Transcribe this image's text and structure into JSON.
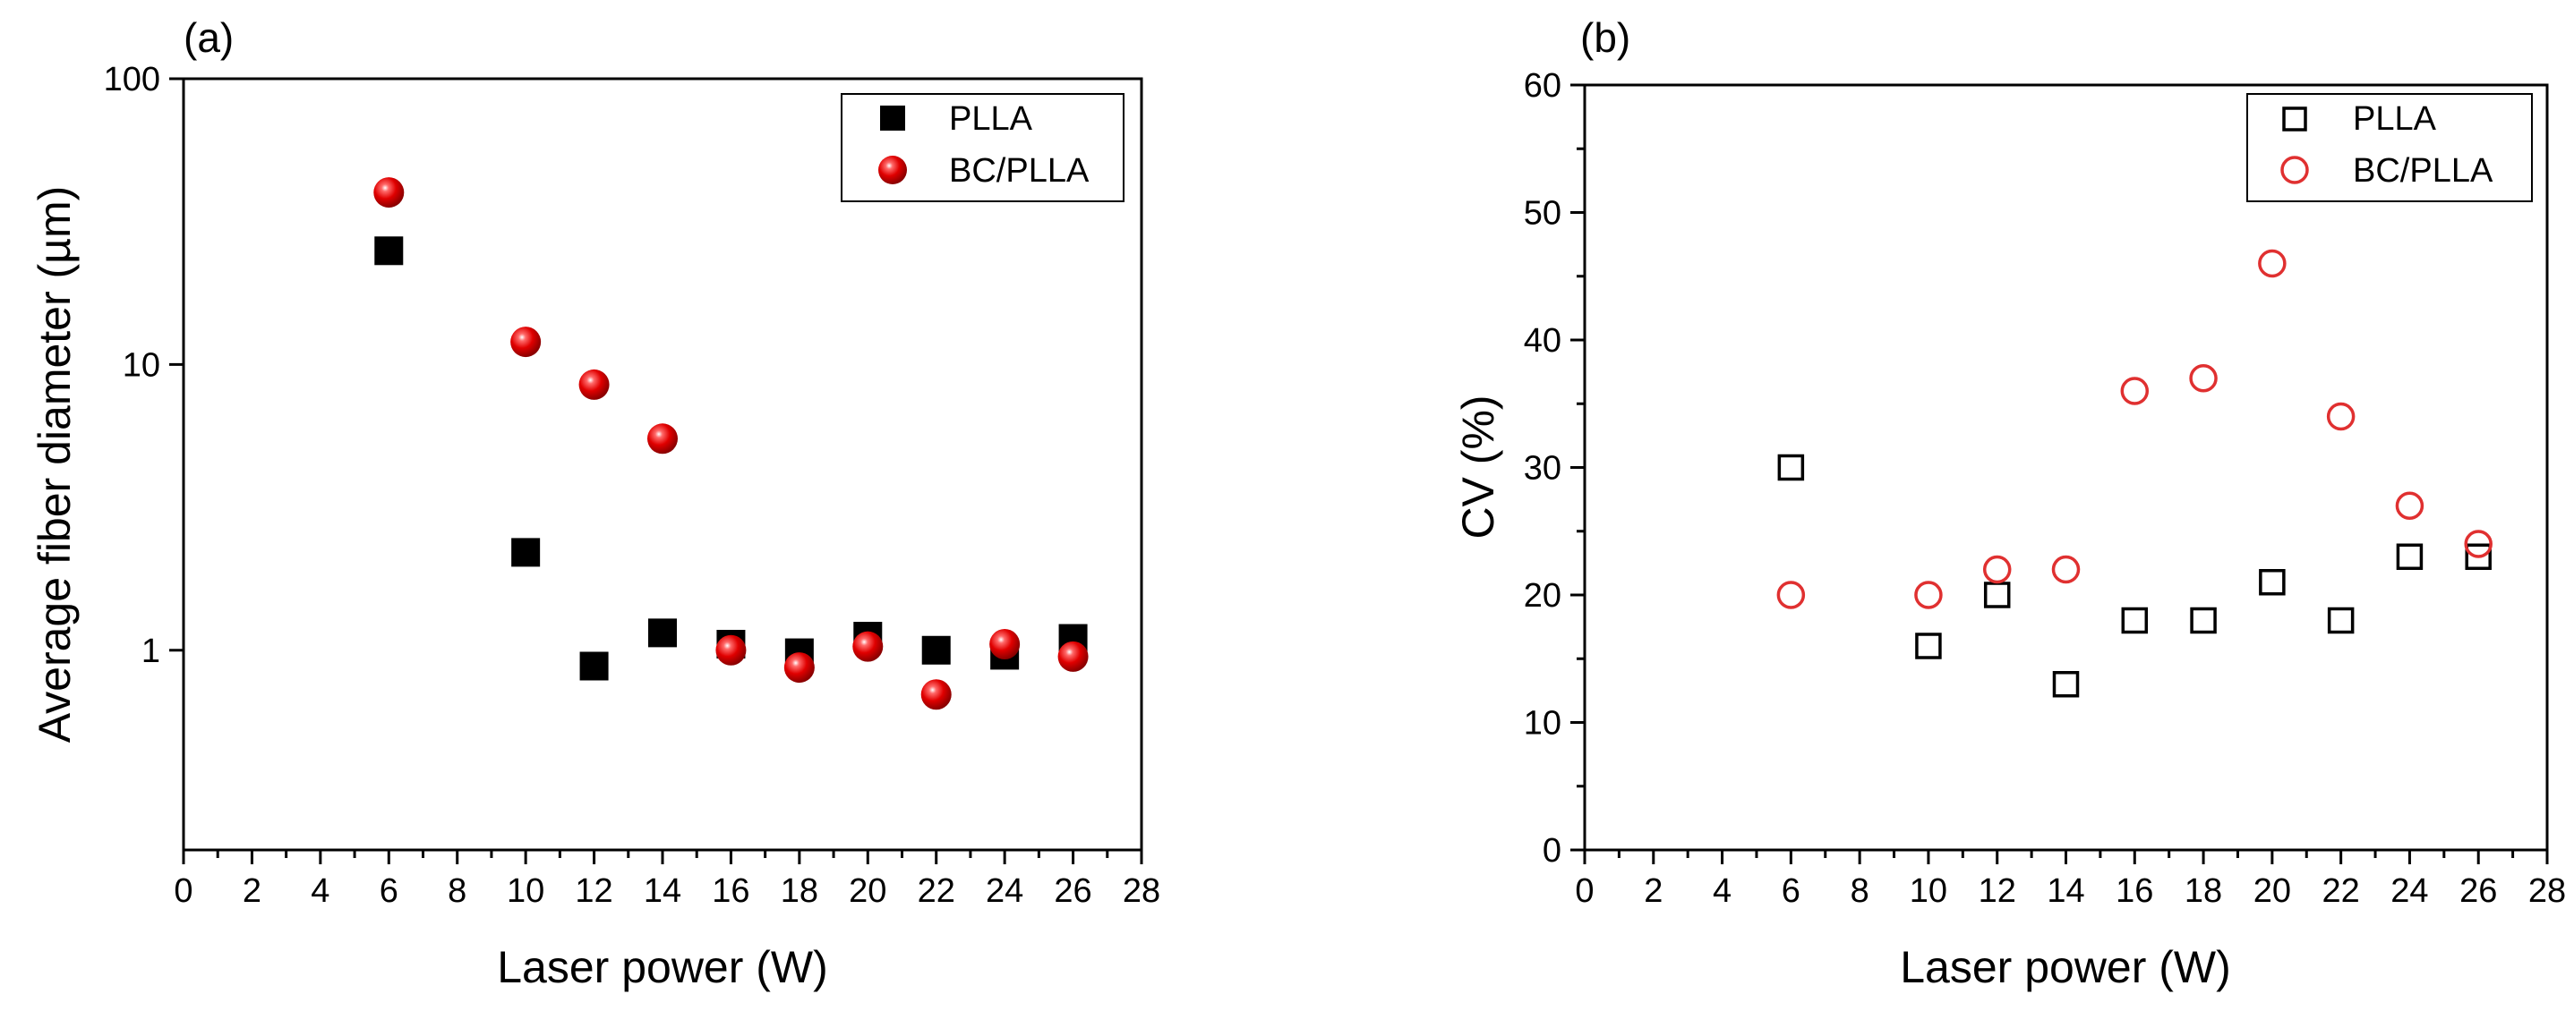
{
  "chart_data": [
    {
      "panel_label": "(a)",
      "type": "scatter",
      "xscale": "linear",
      "yscale": "log",
      "xlabel": "Laser power (W)",
      "ylabel": "Average fiber diameter (µm)",
      "xlim": [
        0,
        28
      ],
      "ylim": [
        0.2,
        100
      ],
      "xticks": [
        "0",
        "2",
        "4",
        "6",
        "8",
        "10",
        "12",
        "14",
        "16",
        "18",
        "20",
        "22",
        "24",
        "26",
        "28"
      ],
      "yticks": [
        "1",
        "10",
        "100"
      ],
      "legend_position": "top-right",
      "series": [
        {
          "name": "PLLA",
          "marker": "filled-square",
          "color": "#000000",
          "x": [
            6,
            10,
            12,
            14,
            16,
            18,
            20,
            22,
            24,
            26
          ],
          "y": [
            25,
            2.2,
            0.88,
            1.15,
            1.05,
            0.98,
            1.12,
            1.0,
            0.96,
            1.1
          ]
        },
        {
          "name": "BC/PLLA",
          "marker": "filled-sphere",
          "color": "#e00000",
          "x": [
            6,
            10,
            12,
            14,
            16,
            18,
            20,
            22,
            24,
            26
          ],
          "y": [
            40,
            12,
            8.5,
            5.5,
            1.0,
            0.87,
            1.03,
            0.7,
            1.05,
            0.95
          ]
        }
      ]
    },
    {
      "panel_label": "(b)",
      "type": "scatter",
      "xscale": "linear",
      "yscale": "linear",
      "xlabel": "Laser power (W)",
      "ylabel": "CV (%)",
      "xlim": [
        0,
        28
      ],
      "ylim": [
        0,
        60
      ],
      "xticks": [
        "0",
        "2",
        "4",
        "6",
        "8",
        "10",
        "12",
        "14",
        "16",
        "18",
        "20",
        "22",
        "24",
        "26",
        "28"
      ],
      "yticks": [
        "0",
        "10",
        "20",
        "30",
        "40",
        "50",
        "60"
      ],
      "legend_position": "top-right",
      "series": [
        {
          "name": "PLLA",
          "marker": "open-square",
          "color": "#000000",
          "x": [
            6,
            10,
            12,
            14,
            16,
            18,
            20,
            22,
            24,
            26
          ],
          "y": [
            30,
            16,
            20,
            13,
            18,
            18,
            21,
            18,
            23,
            23
          ]
        },
        {
          "name": "BC/PLLA",
          "marker": "open-circle",
          "color": "#e03030",
          "x": [
            6,
            10,
            12,
            14,
            16,
            18,
            20,
            22,
            24,
            26
          ],
          "y": [
            20,
            20,
            22,
            22,
            36,
            37,
            46,
            34,
            27,
            24
          ]
        }
      ]
    }
  ]
}
